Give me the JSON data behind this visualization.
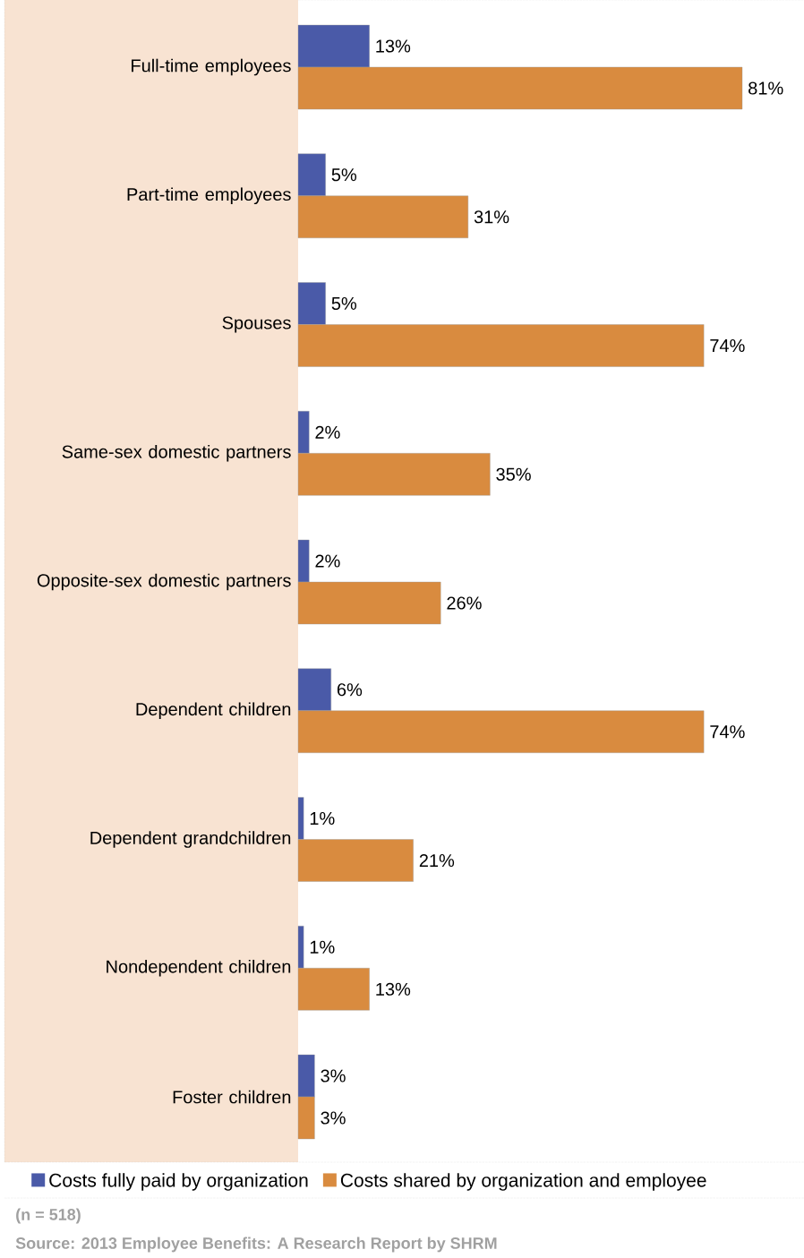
{
  "chart_data": {
    "type": "bar",
    "orientation": "horizontal",
    "categories": [
      "Full-time employees",
      "Part-time employees",
      "Spouses",
      "Same-sex domestic partners",
      "Opposite-sex domestic partners",
      "Dependent children",
      "Dependent grandchildren",
      "Nondependent children",
      "Foster children"
    ],
    "series": [
      {
        "name": "Costs fully paid by organization",
        "color": "#4a5aa8",
        "values": [
          13,
          5,
          5,
          2,
          2,
          6,
          1,
          1,
          3
        ],
        "value_labels": [
          "13%",
          "5%",
          "5%",
          "2%",
          "2%",
          "6%",
          "1%",
          "1%",
          "3%"
        ]
      },
      {
        "name": "Costs shared by organization and employee",
        "color": "#d98b3f",
        "values": [
          81,
          31,
          74,
          35,
          26,
          74,
          21,
          13,
          3
        ],
        "value_labels": [
          "81%",
          "31%",
          "74%",
          "35%",
          "26%",
          "74%",
          "21%",
          "13%",
          "3%"
        ]
      }
    ],
    "legend": "bottom",
    "annotations": [
      "(n = 518)",
      "Source: 2013 Employee Benefits: A Research Report by SHRM"
    ]
  }
}
